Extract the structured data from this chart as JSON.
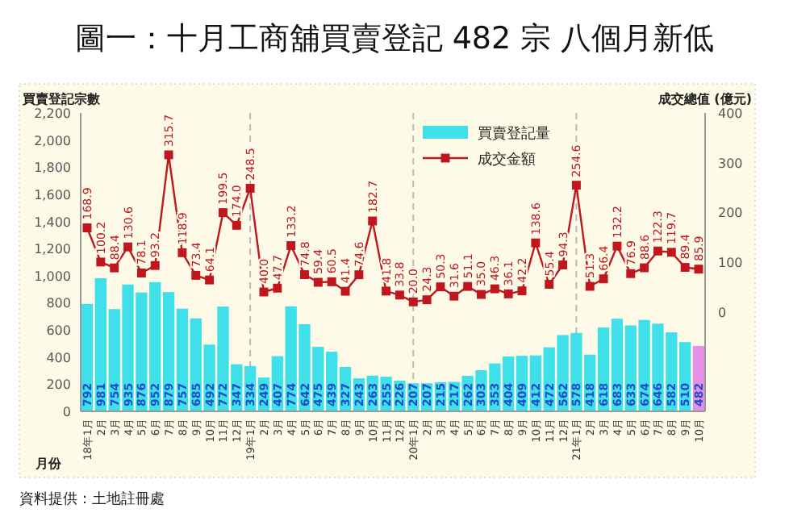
{
  "chart_data": {
    "type": "bar",
    "title": "圖一：十月工商舖買賣登記 482 宗 八個月新低",
    "xlabel": "月份",
    "ylabel": "買賣登記宗數",
    "y2label": "成交總值 (億元)",
    "categories": [
      "18年1月",
      "2月",
      "3月",
      "4月",
      "5月",
      "6月",
      "7月",
      "8月",
      "9月",
      "10月",
      "11月",
      "12月",
      "19年1月",
      "2月",
      "3月",
      "4月",
      "5月",
      "6月",
      "7月",
      "8月",
      "9月",
      "10月",
      "11月",
      "12月",
      "20年1月",
      "2月",
      "3月",
      "4月",
      "5月",
      "6月",
      "7月",
      "8月",
      "9月",
      "10月",
      "11月",
      "12月",
      "21年1月",
      "2月",
      "3月",
      "4月",
      "5月",
      "6月",
      "7月",
      "8月",
      "9月",
      "10月"
    ],
    "series": [
      {
        "name": "買賣登記量",
        "color": "#3fe0ea",
        "colors": [
          "#3fe0ea",
          "#3fe0ea",
          "#3fe0ea",
          "#3fe0ea",
          "#3fe0ea",
          "#3fe0ea",
          "#3fe0ea",
          "#3fe0ea",
          "#3fe0ea",
          "#3fe0ea",
          "#3fe0ea",
          "#3fe0ea",
          "#3fe0ea",
          "#3fe0ea",
          "#3fe0ea",
          "#3fe0ea",
          "#3fe0ea",
          "#3fe0ea",
          "#3fe0ea",
          "#3fe0ea",
          "#3fe0ea",
          "#3fe0ea",
          "#3fe0ea",
          "#3fe0ea",
          "#3fe0ea",
          "#3fe0ea",
          "#3fe0ea",
          "#3fe0ea",
          "#3fe0ea",
          "#3fe0ea",
          "#3fe0ea",
          "#3fe0ea",
          "#3fe0ea",
          "#3fe0ea",
          "#3fe0ea",
          "#3fe0ea",
          "#3fe0ea",
          "#3fe0ea",
          "#3fe0ea",
          "#3fe0ea",
          "#3fe0ea",
          "#3fe0ea",
          "#3fe0ea",
          "#3fe0ea",
          "#3fe0ea",
          "#e58fe8"
        ],
        "values": [
          792,
          981,
          754,
          935,
          876,
          952,
          879,
          757,
          685,
          492,
          772,
          347,
          334,
          249,
          407,
          774,
          642,
          475,
          439,
          327,
          243,
          263,
          255,
          226,
          207,
          207,
          215,
          217,
          262,
          303,
          353,
          404,
          409,
          412,
          472,
          562,
          578,
          418,
          618,
          683,
          633,
          674,
          646,
          582,
          510,
          482
        ]
      },
      {
        "name": "成交金額",
        "type": "line",
        "axis": "y2",
        "color": "#c0161e",
        "marker": "square",
        "value_labels": [
          "168.9",
          "100.2",
          "88.4",
          "130.6",
          "78.1",
          "93.2",
          "315.7",
          "118.9",
          "73.4",
          "64.1",
          "199.5",
          "174.0",
          "248.5",
          "40.0",
          "47.7",
          "133.2",
          "74.8",
          "59.4",
          "60.5",
          "41.4",
          "74.6",
          "182.7",
          "41.8",
          "33.8",
          "20.0",
          "24.3",
          "50.3",
          "31.6",
          "51.1",
          "35.0",
          "46.3",
          "36.1",
          "42.2",
          "138.6",
          "55.4",
          "94.3",
          "254.6",
          "51.3",
          "66.4",
          "132.2",
          "76.9",
          "88.6",
          "122.3",
          "119.7",
          "89.4",
          "85.9"
        ],
        "values": [
          168.9,
          100.2,
          88.4,
          130.6,
          78.1,
          93.2,
          315.7,
          118.9,
          73.4,
          64.1,
          199.5,
          174.0,
          248.5,
          40.0,
          47.7,
          133.2,
          74.8,
          59.4,
          60.5,
          41.4,
          74.6,
          182.7,
          41.8,
          33.8,
          20.0,
          24.3,
          50.3,
          31.6,
          51.1,
          35.0,
          46.3,
          36.1,
          42.2,
          138.6,
          55.4,
          94.3,
          254.6,
          51.3,
          66.4,
          132.2,
          76.9,
          88.6,
          122.3,
          119.7,
          89.4,
          85.9
        ]
      }
    ],
    "ylim": [
      0,
      2200
    ],
    "yticks": [
      0,
      200,
      400,
      600,
      800,
      {
        "value": 1000,
        "label": "1,000"
      },
      {
        "value": 1200,
        "label": "1,200"
      },
      {
        "value": 1400,
        "label": "1,400"
      },
      {
        "value": 1600,
        "label": "1,600"
      },
      {
        "value": 1800,
        "label": "1,800"
      },
      {
        "value": 2000,
        "label": "2,000"
      },
      {
        "value": 2200,
        "label": "2,200"
      }
    ],
    "y2lim": [
      -200,
      400
    ],
    "y2ticks": [
      0,
      100,
      200,
      300,
      400
    ],
    "ref_lines": [
      {
        "axis": "x",
        "value": "19年1月",
        "line_style": "dashed",
        "color": "#bbbbbb"
      },
      {
        "axis": "x",
        "value": "20年1月",
        "line_style": "dashed",
        "color": "#bbbbbb"
      },
      {
        "axis": "x",
        "value": "21年1月",
        "line_style": "dashed",
        "color": "#bbbbbb"
      }
    ],
    "data_labels": true,
    "grid": false,
    "legend": "top",
    "annotations": [
      "資料提供：土地註冊處"
    ]
  }
}
